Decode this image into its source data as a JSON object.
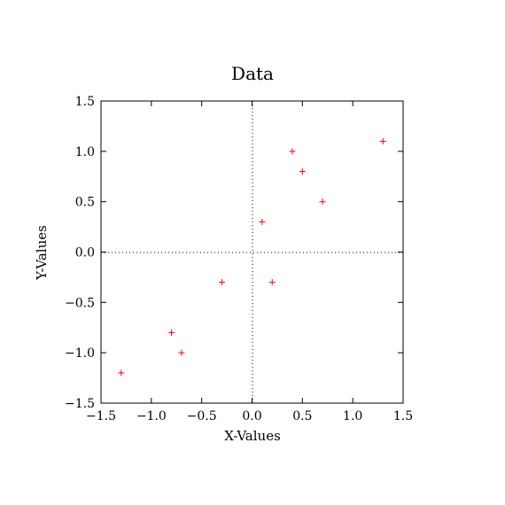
{
  "chart_data": {
    "type": "scatter",
    "title": "Data",
    "xlabel": "X-Values",
    "ylabel": "Y-Values",
    "xlim": [
      -1.5,
      1.5
    ],
    "ylim": [
      -1.5,
      1.5
    ],
    "xticks": [
      -1.5,
      -1.0,
      -0.5,
      0.0,
      0.5,
      1.0,
      1.5
    ],
    "yticks": [
      -1.5,
      -1.0,
      -0.5,
      0.0,
      0.5,
      1.0,
      1.5
    ],
    "xtick_labels": [
      "−1.5",
      "−1.0",
      "−0.5",
      "0.0",
      "0.5",
      "1.0",
      "1.5"
    ],
    "ytick_labels": [
      "−1.5",
      "−1.0",
      "−0.5",
      "0.0",
      "0.5",
      "1.0",
      "1.5"
    ],
    "marker": "+",
    "marker_color": "#ff0000",
    "zero_lines": "dotted",
    "grid": false,
    "points": [
      {
        "x": -1.3,
        "y": -1.2
      },
      {
        "x": -0.8,
        "y": -0.8
      },
      {
        "x": -0.7,
        "y": -1.0
      },
      {
        "x": -0.3,
        "y": -0.3
      },
      {
        "x": 0.1,
        "y": 0.3
      },
      {
        "x": 0.2,
        "y": -0.3
      },
      {
        "x": 0.4,
        "y": 1.0
      },
      {
        "x": 0.5,
        "y": 0.8
      },
      {
        "x": 0.7,
        "y": 0.5
      },
      {
        "x": 1.3,
        "y": 1.1
      }
    ]
  }
}
